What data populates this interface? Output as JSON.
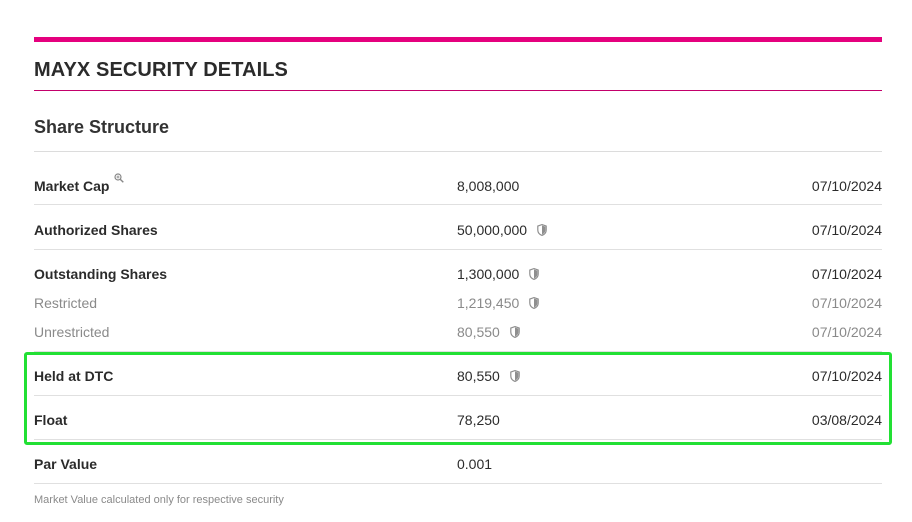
{
  "page_title": "MAYX SECURITY DETAILS",
  "section_title": "Share Structure",
  "rows": [
    {
      "label": "Market Cap",
      "value": "8,008,000",
      "date": "07/10/2024",
      "icon": "magnifier-icon"
    },
    {
      "label": "Authorized Shares",
      "value": "50,000,000",
      "date": "07/10/2024",
      "icon": "shield-icon"
    },
    {
      "label": "Outstanding Shares",
      "value": "1,300,000",
      "date": "07/10/2024",
      "icon": "shield-icon"
    },
    {
      "label": "Restricted",
      "value": "1,219,450",
      "date": "07/10/2024",
      "icon": "shield-icon"
    },
    {
      "label": "Unrestricted",
      "value": "80,550",
      "date": "07/10/2024",
      "icon": "shield-icon"
    },
    {
      "label": "Held at DTC",
      "value": "80,550",
      "date": "07/10/2024",
      "icon": "shield-icon"
    },
    {
      "label": "Float",
      "value": "78,250",
      "date": "03/08/2024",
      "icon": ""
    },
    {
      "label": "Par Value",
      "value": "0.001",
      "date": "",
      "icon": ""
    }
  ],
  "footnote": "Market Value calculated only for respective security",
  "colors": {
    "accent": "#e5007e",
    "highlight": "#22e034",
    "muted_text": "#8a8a8a"
  }
}
